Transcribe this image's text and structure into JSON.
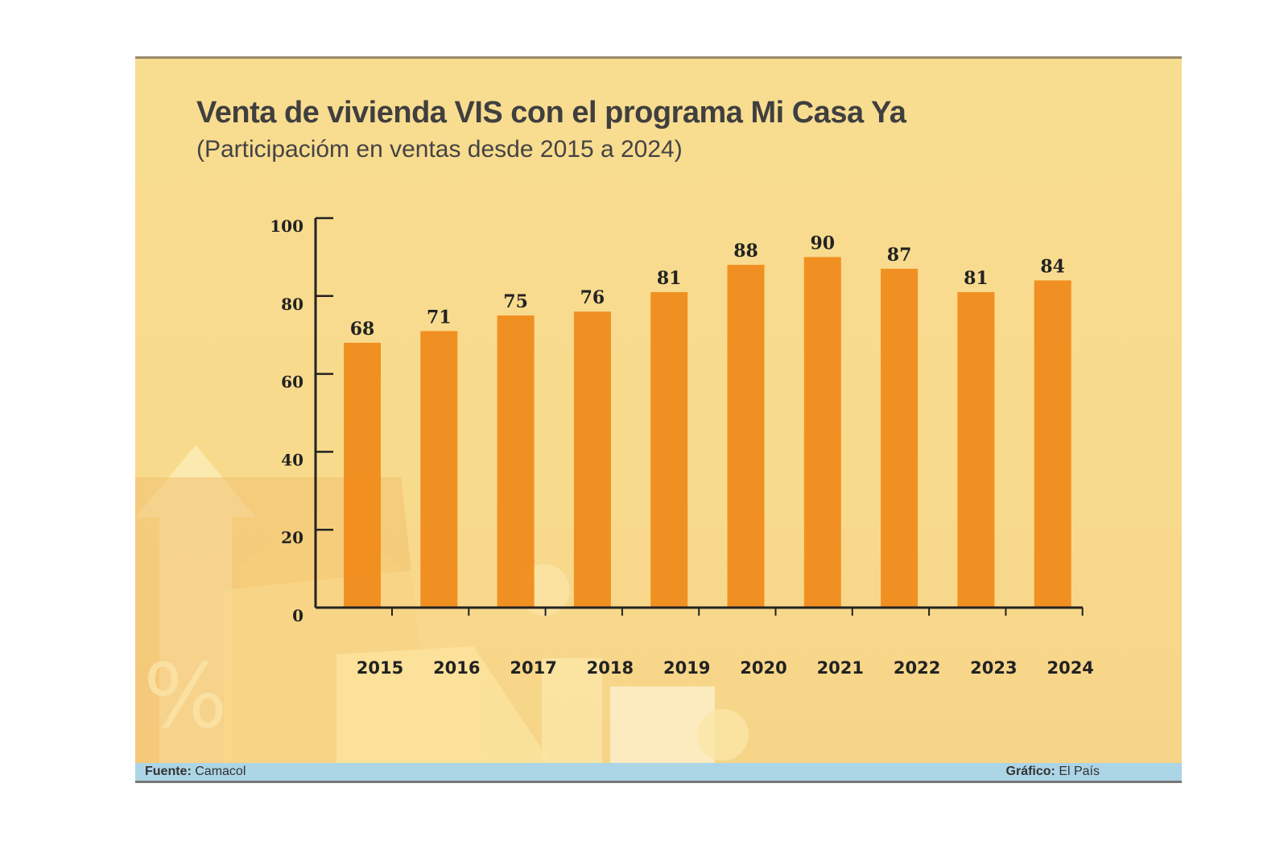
{
  "chart_data": {
    "type": "bar",
    "title": "Venta de vivienda VIS con el programa Mi Casa Ya",
    "subtitle": "(Participacióm en ventas desde 2015 a 2024)",
    "categories": [
      "2015",
      "2016",
      "2017",
      "2018",
      "2019",
      "2020",
      "2021",
      "2022",
      "2023",
      "2024"
    ],
    "values": [
      68,
      71,
      75,
      76,
      81,
      88,
      90,
      87,
      81,
      84
    ],
    "yticks": [
      "0",
      "20",
      "40",
      "60",
      "80",
      "100"
    ],
    "ylim": [
      0,
      100
    ],
    "grid": false,
    "bar_color": "#f08c1c",
    "xlabel": "",
    "ylabel": ""
  },
  "footer": {
    "source_label": "Fuente:",
    "source": "Camacol",
    "credit_label": "Gráfico:",
    "credit": "El País"
  }
}
